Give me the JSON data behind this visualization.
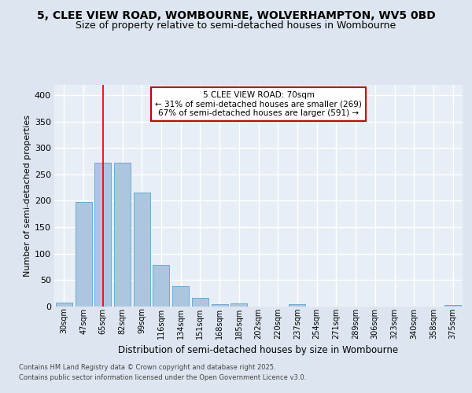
{
  "title1": "5, CLEE VIEW ROAD, WOMBOURNE, WOLVERHAMPTON, WV5 0BD",
  "title2": "Size of property relative to semi-detached houses in Wombourne",
  "xlabel": "Distribution of semi-detached houses by size in Wombourne",
  "ylabel": "Number of semi-detached properties",
  "categories": [
    "30sqm",
    "47sqm",
    "65sqm",
    "82sqm",
    "99sqm",
    "116sqm",
    "134sqm",
    "151sqm",
    "168sqm",
    "185sqm",
    "202sqm",
    "220sqm",
    "237sqm",
    "254sqm",
    "271sqm",
    "289sqm",
    "306sqm",
    "323sqm",
    "340sqm",
    "358sqm",
    "375sqm"
  ],
  "values": [
    8,
    197,
    272,
    272,
    215,
    79,
    39,
    16,
    5,
    6,
    0,
    0,
    4,
    0,
    0,
    0,
    0,
    0,
    0,
    0,
    3
  ],
  "bar_color": "#adc6e0",
  "bar_edgecolor": "#6aaad4",
  "red_line_x": 2,
  "annotation_title": "5 CLEE VIEW ROAD: 70sqm",
  "annotation_line1": "← 31% of semi-detached houses are smaller (269)",
  "annotation_line2": "67% of semi-detached houses are larger (591) →",
  "annotation_box_color": "#ffffff",
  "annotation_border_color": "#cc0000",
  "footer1": "Contains HM Land Registry data © Crown copyright and database right 2025.",
  "footer2": "Contains public sector information licensed under the Open Government Licence v3.0.",
  "ylim": [
    0,
    420
  ],
  "yticks": [
    0,
    50,
    100,
    150,
    200,
    250,
    300,
    350,
    400
  ],
  "bg_color": "#dde6f0",
  "plot_bg_color": "#e8eef6",
  "grid_color": "#ffffff",
  "title1_fontsize": 10,
  "title2_fontsize": 9
}
